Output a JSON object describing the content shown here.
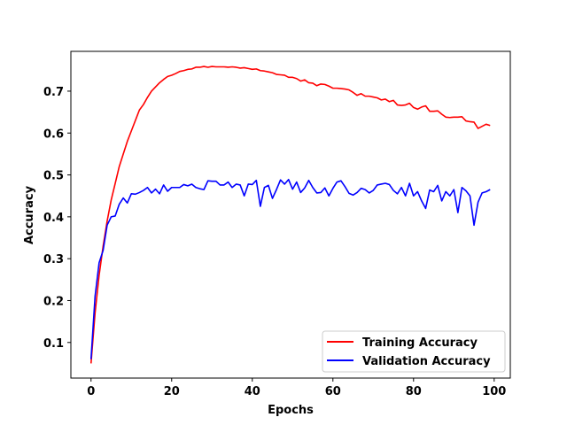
{
  "chart_data": {
    "type": "line",
    "title": "",
    "xlabel": "Epochs",
    "ylabel": "Accuracy",
    "xlim": [
      -5,
      104
    ],
    "ylim": [
      0.015,
      0.795
    ],
    "xticks": [
      0,
      20,
      40,
      60,
      80,
      100
    ],
    "yticks": [
      0.1,
      0.2,
      0.3,
      0.4,
      0.5,
      0.6,
      0.7
    ],
    "xtick_labels": [
      "0",
      "20",
      "40",
      "60",
      "80",
      "100"
    ],
    "ytick_labels": [
      "0.1",
      "0.2",
      "0.3",
      "0.4",
      "0.5",
      "0.6",
      "0.7"
    ],
    "grid": false,
    "legend": "lower-right",
    "series": [
      {
        "name": "Training Accuracy",
        "color": "#ff0000",
        "x": [
          0,
          1,
          2,
          3,
          4,
          5,
          6,
          7,
          8,
          9,
          10,
          11,
          12,
          13,
          14,
          15,
          16,
          17,
          18,
          19,
          20,
          21,
          22,
          23,
          24,
          25,
          26,
          27,
          28,
          29,
          30,
          31,
          32,
          33,
          34,
          35,
          36,
          37,
          38,
          39,
          40,
          41,
          42,
          43,
          44,
          45,
          46,
          47,
          48,
          49,
          50,
          51,
          52,
          53,
          54,
          55,
          56,
          57,
          58,
          59,
          60,
          61,
          62,
          63,
          64,
          65,
          66,
          67,
          68,
          69,
          70,
          71,
          72,
          73,
          74,
          75,
          76,
          77,
          78,
          79,
          80,
          81,
          82,
          83,
          84,
          85,
          86,
          87,
          88,
          89,
          90,
          91,
          92,
          93,
          94,
          95,
          96,
          97,
          98,
          99
        ],
        "values": [
          0.05,
          0.17,
          0.26,
          0.33,
          0.39,
          0.44,
          0.48,
          0.52,
          0.55,
          0.58,
          0.605,
          0.63,
          0.655,
          0.668,
          0.685,
          0.7,
          0.71,
          0.72,
          0.728,
          0.735,
          0.738,
          0.742,
          0.747,
          0.749,
          0.752,
          0.753,
          0.757,
          0.757,
          0.759,
          0.757,
          0.759,
          0.758,
          0.758,
          0.758,
          0.757,
          0.758,
          0.757,
          0.755,
          0.756,
          0.754,
          0.752,
          0.753,
          0.749,
          0.748,
          0.746,
          0.744,
          0.74,
          0.739,
          0.738,
          0.733,
          0.733,
          0.73,
          0.724,
          0.727,
          0.72,
          0.719,
          0.713,
          0.717,
          0.716,
          0.712,
          0.707,
          0.707,
          0.706,
          0.705,
          0.703,
          0.697,
          0.69,
          0.694,
          0.688,
          0.688,
          0.686,
          0.684,
          0.679,
          0.681,
          0.675,
          0.678,
          0.667,
          0.666,
          0.667,
          0.671,
          0.661,
          0.657,
          0.662,
          0.665,
          0.652,
          0.652,
          0.653,
          0.645,
          0.638,
          0.637,
          0.638,
          0.638,
          0.639,
          0.629,
          0.627,
          0.626,
          0.611,
          0.616,
          0.621,
          0.618
        ]
      },
      {
        "name": "Validation Accuracy",
        "color": "#0000ff",
        "x": [
          0,
          1,
          2,
          3,
          4,
          5,
          6,
          7,
          8,
          9,
          10,
          11,
          12,
          13,
          14,
          15,
          16,
          17,
          18,
          19,
          20,
          21,
          22,
          23,
          24,
          25,
          26,
          27,
          28,
          29,
          30,
          31,
          32,
          33,
          34,
          35,
          36,
          37,
          38,
          39,
          40,
          41,
          42,
          43,
          44,
          45,
          46,
          47,
          48,
          49,
          50,
          51,
          52,
          53,
          54,
          55,
          56,
          57,
          58,
          59,
          60,
          61,
          62,
          63,
          64,
          65,
          66,
          67,
          68,
          69,
          70,
          71,
          72,
          73,
          74,
          75,
          76,
          77,
          78,
          79,
          80,
          81,
          82,
          83,
          84,
          85,
          86,
          87,
          88,
          89,
          90,
          91,
          92,
          93,
          94,
          95,
          96,
          97,
          98,
          99
        ],
        "values": [
          0.06,
          0.21,
          0.29,
          0.32,
          0.38,
          0.4,
          0.402,
          0.43,
          0.445,
          0.433,
          0.455,
          0.454,
          0.458,
          0.463,
          0.47,
          0.457,
          0.466,
          0.455,
          0.476,
          0.461,
          0.47,
          0.47,
          0.47,
          0.477,
          0.474,
          0.478,
          0.47,
          0.467,
          0.465,
          0.486,
          0.485,
          0.485,
          0.476,
          0.476,
          0.483,
          0.47,
          0.478,
          0.476,
          0.45,
          0.478,
          0.477,
          0.487,
          0.425,
          0.47,
          0.475,
          0.444,
          0.465,
          0.488,
          0.478,
          0.489,
          0.466,
          0.483,
          0.458,
          0.469,
          0.487,
          0.47,
          0.457,
          0.458,
          0.469,
          0.45,
          0.468,
          0.483,
          0.486,
          0.472,
          0.456,
          0.452,
          0.458,
          0.468,
          0.465,
          0.457,
          0.463,
          0.476,
          0.478,
          0.48,
          0.477,
          0.463,
          0.455,
          0.47,
          0.45,
          0.48,
          0.45,
          0.46,
          0.438,
          0.42,
          0.464,
          0.46,
          0.475,
          0.438,
          0.46,
          0.45,
          0.465,
          0.41,
          0.47,
          0.462,
          0.45,
          0.38,
          0.435,
          0.457,
          0.46,
          0.465
        ]
      }
    ]
  }
}
